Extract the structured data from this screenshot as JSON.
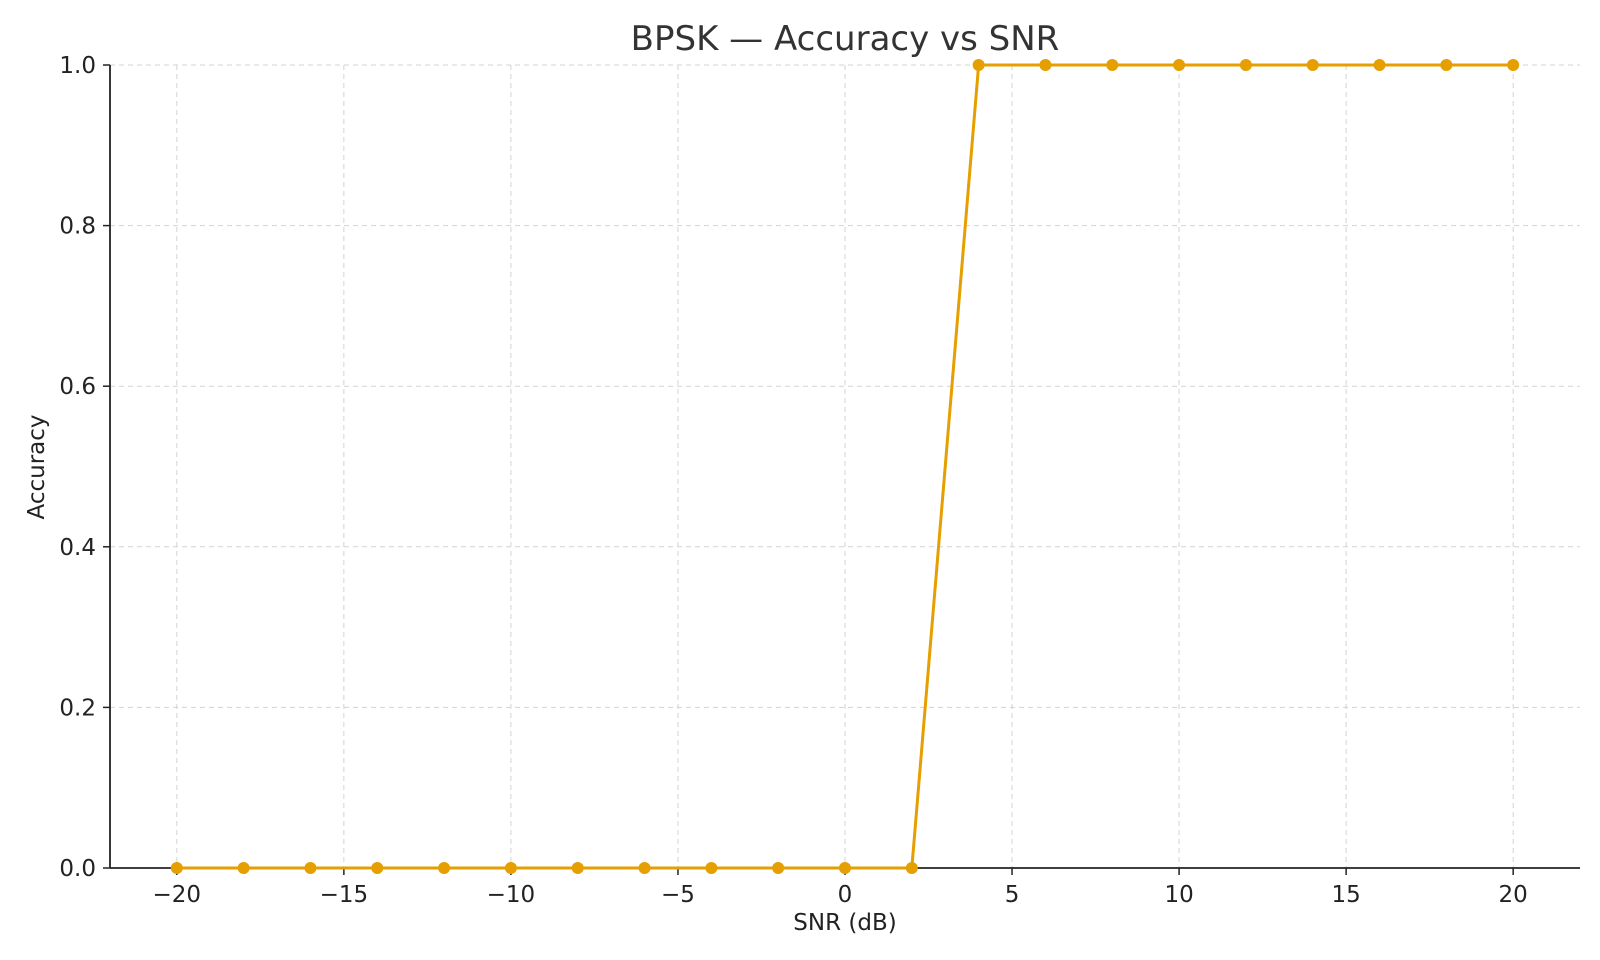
{
  "chart_data": {
    "type": "line",
    "title": "BPSK — Accuracy vs SNR",
    "xlabel": "SNR (dB)",
    "ylabel": "Accuracy",
    "xlim": [
      -22,
      22
    ],
    "ylim": [
      0,
      1
    ],
    "xticks": [
      -20,
      -15,
      -10,
      -5,
      0,
      5,
      10,
      15,
      20
    ],
    "xtick_labels": [
      "−20",
      "−15",
      "−10",
      "−5",
      "0",
      "5",
      "10",
      "15",
      "20"
    ],
    "yticks": [
      0.0,
      0.2,
      0.4,
      0.6,
      0.8,
      1.0
    ],
    "ytick_labels": [
      "0.0",
      "0.2",
      "0.4",
      "0.6",
      "0.8",
      "1.0"
    ],
    "grid": true,
    "series": [
      {
        "color": "#e69f00",
        "marker": "circle",
        "x": [
          -20,
          -18,
          -16,
          -14,
          -12,
          -10,
          -8,
          -6,
          -4,
          -2,
          0,
          2,
          4,
          6,
          8,
          10,
          12,
          14,
          16,
          18,
          20
        ],
        "y": [
          0,
          0,
          0,
          0,
          0,
          0,
          0,
          0,
          0,
          0,
          0,
          0,
          1,
          1,
          1,
          1,
          1,
          1,
          1,
          1,
          1
        ]
      }
    ]
  }
}
